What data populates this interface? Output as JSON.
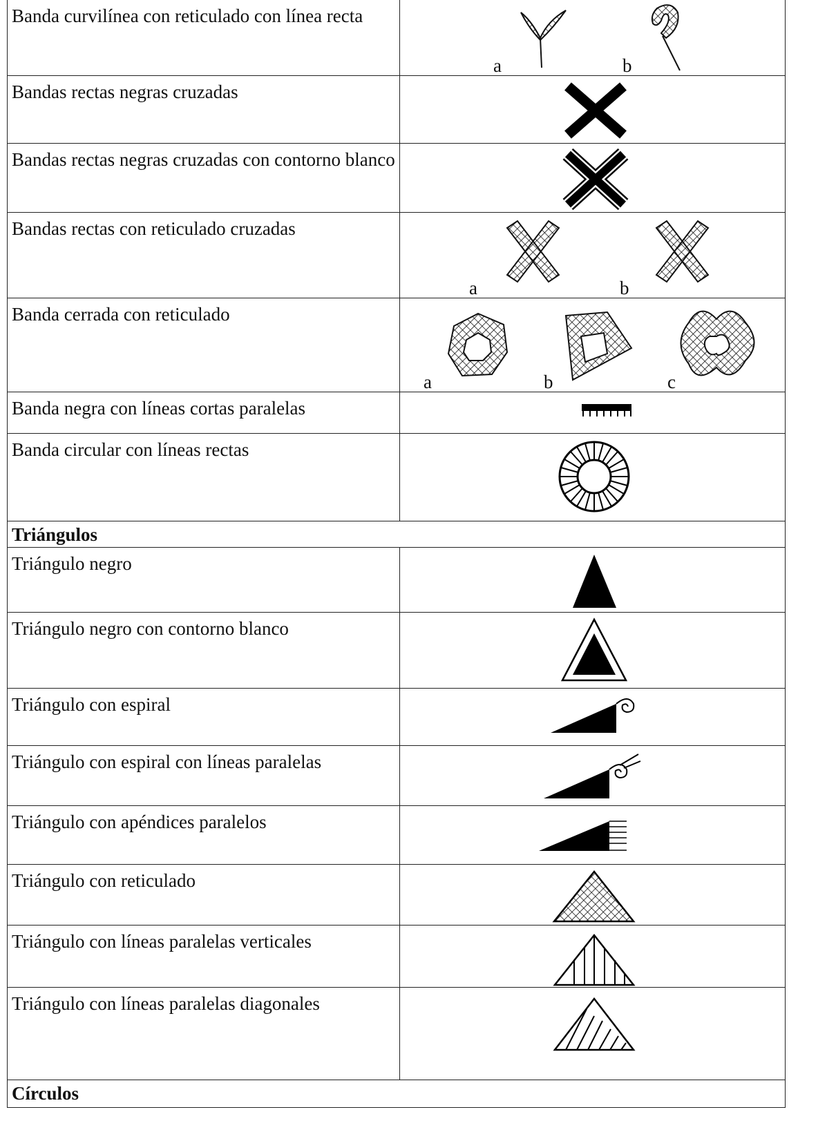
{
  "table": {
    "rows": [
      {
        "label": "Banda curvilínea con reticulado con línea recta",
        "sublabels": [
          "a",
          "b"
        ]
      },
      {
        "label": "Bandas rectas negras cruzadas"
      },
      {
        "label": "Bandas rectas negras cruzadas con contorno blanco"
      },
      {
        "label": "Bandas rectas con reticulado cruzadas",
        "sublabels": [
          "a",
          "b"
        ]
      },
      {
        "label": "Banda cerrada con reticulado",
        "sublabels": [
          "a",
          "b",
          "c"
        ]
      },
      {
        "label": "Banda negra con líneas cortas paralelas"
      },
      {
        "label": "Banda circular con líneas rectas"
      },
      {
        "section": "Triángulos"
      },
      {
        "label": "Triángulo negro"
      },
      {
        "label": "Triángulo negro con contorno blanco"
      },
      {
        "label": "Triángulo con espiral"
      },
      {
        "label": "Triángulo con espiral con líneas paralelas"
      },
      {
        "label": "Triángulo con apéndices paralelos"
      },
      {
        "label": "Triángulo con reticulado"
      },
      {
        "label": "Triángulo con líneas paralelas verticales"
      },
      {
        "label": "Triángulo con líneas paralelas diagonales"
      },
      {
        "section": "Círculos"
      }
    ]
  }
}
